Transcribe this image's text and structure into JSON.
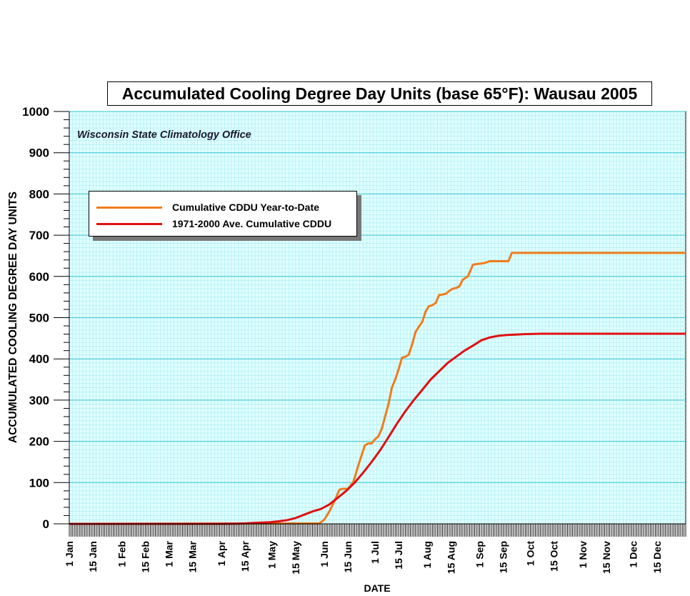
{
  "chart_data": {
    "type": "line",
    "title": "Accumulated Cooling Degree Day Units (base 65°F): Wausau 2005",
    "subtitle": "Wisconsin State Climatology Office",
    "xlabel": "DATE",
    "ylabel": "ACCUMULATED COOLING DEGREE DAY UNITS",
    "ylim": [
      0,
      1000
    ],
    "xlim": [
      1,
      366
    ],
    "yticks": [
      "0",
      "100",
      "200",
      "300",
      "400",
      "500",
      "600",
      "700",
      "800",
      "900",
      "1000"
    ],
    "x_tick_labels": [
      "1 Jan",
      "15 Jan",
      "1 Feb",
      "15 Feb",
      "1 Mar",
      "15 Mar",
      "1 Apr",
      "15 Apr",
      "1 May",
      "15 May",
      "1 Jun",
      "15 Jun",
      "1 Jul",
      "15 Jul",
      "1 Aug",
      "15 Aug",
      "1 Sep",
      "15 Sep",
      "1 Oct",
      "15 Oct",
      "1 Nov",
      "15 Nov",
      "1 Dec",
      "15 Dec"
    ],
    "x_tick_days": [
      1,
      15,
      32,
      46,
      60,
      74,
      91,
      105,
      121,
      135,
      152,
      166,
      182,
      196,
      213,
      227,
      244,
      258,
      274,
      288,
      305,
      319,
      335,
      349
    ],
    "grid": true,
    "legend_position": "upper-left",
    "series": [
      {
        "name": "Cumulative CDDU Year-to-Date",
        "color": "#f07c1c",
        "x": [
          1,
          149,
          152,
          155,
          158,
          161,
          163,
          166,
          169,
          170,
          172,
          174,
          176,
          178,
          180,
          182,
          184,
          186,
          188,
          190,
          192,
          194,
          196,
          198,
          200,
          202,
          204,
          206,
          208,
          210,
          212,
          214,
          216,
          218,
          220,
          222,
          224,
          226,
          228,
          230,
          232,
          234,
          237,
          240,
          242,
          245,
          248,
          250,
          252,
          254,
          256,
          258,
          261,
          263,
          267,
          270,
          275,
          277,
          366
        ],
        "y": [
          0,
          1,
          10,
          30,
          55,
          83,
          85,
          85,
          100,
          112,
          140,
          165,
          190,
          195,
          195,
          205,
          212,
          230,
          260,
          290,
          330,
          350,
          375,
          403,
          405,
          410,
          435,
          465,
          478,
          490,
          515,
          528,
          530,
          536,
          555,
          556,
          558,
          565,
          570,
          572,
          576,
          592,
          600,
          628,
          630,
          631,
          634,
          637,
          637,
          637,
          637,
          637,
          637,
          657,
          657,
          657,
          657,
          657,
          657
        ]
      },
      {
        "name": "1971-2000 Ave. Cumulative CDDU",
        "color": "#e01010",
        "x": [
          1,
          91,
          100,
          105,
          110,
          115,
          120,
          125,
          130,
          135,
          140,
          145,
          150,
          155,
          160,
          165,
          170,
          175,
          180,
          185,
          190,
          195,
          200,
          205,
          210,
          215,
          220,
          225,
          230,
          235,
          240,
          245,
          250,
          255,
          260,
          265,
          270,
          280,
          290,
          366
        ],
        "y": [
          0,
          0,
          0.5,
          1,
          2,
          3,
          4,
          6,
          9,
          14,
          22,
          30,
          36,
          47,
          63,
          80,
          100,
          124,
          150,
          178,
          210,
          243,
          273,
          300,
          325,
          350,
          370,
          390,
          405,
          420,
          432,
          445,
          452,
          456,
          458,
          459,
          460,
          461,
          461,
          461
        ]
      }
    ]
  }
}
